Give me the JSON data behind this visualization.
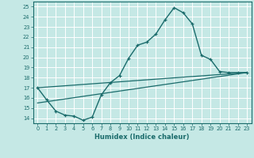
{
  "xlabel": "Humidex (Indice chaleur)",
  "xlim": [
    -0.5,
    23.5
  ],
  "ylim": [
    13.5,
    25.5
  ],
  "xticks": [
    0,
    1,
    2,
    3,
    4,
    5,
    6,
    7,
    8,
    9,
    10,
    11,
    12,
    13,
    14,
    15,
    16,
    17,
    18,
    19,
    20,
    21,
    22,
    23
  ],
  "yticks": [
    14,
    15,
    16,
    17,
    18,
    19,
    20,
    21,
    22,
    23,
    24,
    25
  ],
  "bg_color": "#c5e8e5",
  "line_color": "#1a6b6b",
  "grid_color": "#b0d8d8",
  "line1_x": [
    0,
    1,
    2,
    3,
    4,
    5,
    6,
    7,
    8,
    9,
    10,
    11,
    12,
    13,
    14,
    15,
    16,
    17,
    18,
    19,
    20,
    21,
    22,
    23
  ],
  "line1_y": [
    17.0,
    15.8,
    14.7,
    14.3,
    14.2,
    13.8,
    14.1,
    16.3,
    17.5,
    18.2,
    19.9,
    21.2,
    21.5,
    22.3,
    23.7,
    24.9,
    24.4,
    23.3,
    20.2,
    19.8,
    18.6,
    18.5,
    18.5,
    18.5
  ],
  "line2_x": [
    0,
    23
  ],
  "line2_y": [
    17.0,
    18.5
  ],
  "line3_x": [
    0,
    23
  ],
  "line3_y": [
    15.5,
    18.5
  ],
  "marker": "+"
}
